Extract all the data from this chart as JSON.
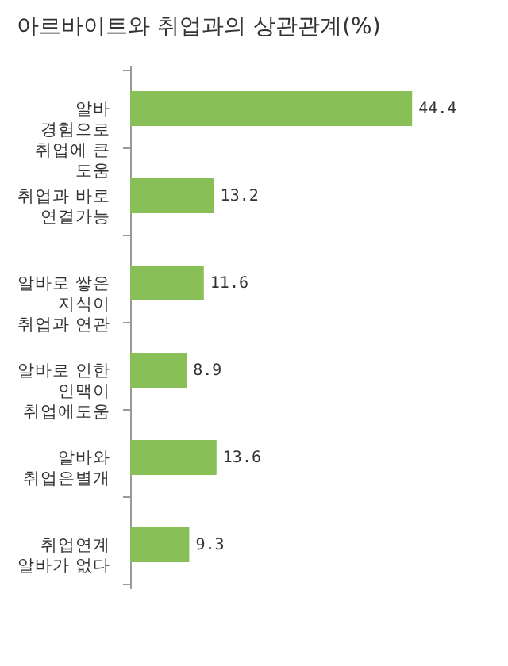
{
  "chart_data": {
    "type": "bar",
    "orientation": "horizontal",
    "title": "아르바이트와 취업과의 상관관계(%)",
    "categories": [
      "알바 경험으로 취업에 큰 도움",
      "취업과 바로 연결가능",
      "알바로 쌓은 지식이 취업과 연관",
      "알바로 인한 인맥이 취업에도움",
      "알바와 취업은별개",
      "취업연계 알바가 없다"
    ],
    "values": [
      44.4,
      13.2,
      11.6,
      8.9,
      13.6,
      9.3
    ],
    "color": "#88c057",
    "data_labels": true
  }
}
